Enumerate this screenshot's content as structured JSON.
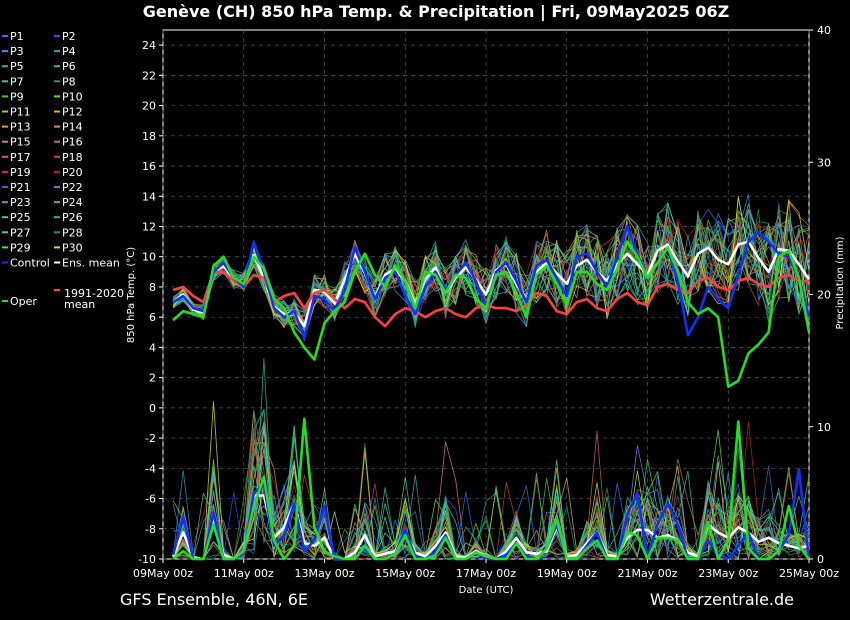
{
  "chart_data": {
    "type": "line",
    "title": "Genève  (CH)  850 hPa Temp. & Precipitation | Fri, 09May2025 06Z",
    "ylabel": "850 hPa Temp. (°C)",
    "y2label": "Precipitation (mm)",
    "xlabel": "Date (UTC)",
    "ylim": [
      -10,
      25
    ],
    "y2lim": [
      0,
      40
    ],
    "yticks": [
      -10,
      -8,
      -6,
      -4,
      -2,
      0,
      2,
      4,
      6,
      8,
      10,
      12,
      14,
      16,
      18,
      20,
      22,
      24
    ],
    "y2ticks": [
      0,
      10,
      20,
      30,
      40
    ],
    "xticks": [
      "09May 00z",
      "11May 00z",
      "13May 00z",
      "15May 00z",
      "17May 00z",
      "19May 00z",
      "21May 00z",
      "23May 00z",
      "25May 00z"
    ],
    "x_hours": [
      6,
      12,
      18,
      24,
      30,
      36,
      42,
      48,
      54,
      60,
      66,
      72,
      78,
      84,
      90,
      96,
      102,
      108,
      114,
      120,
      126,
      132,
      138,
      144,
      150,
      156,
      162,
      168,
      174,
      180,
      186,
      192,
      198,
      204,
      210,
      216,
      222,
      228,
      234,
      240,
      246,
      252,
      258,
      264,
      270,
      276,
      282,
      288,
      294,
      300,
      306,
      312,
      318,
      324,
      330,
      336,
      342,
      348,
      354,
      360,
      366,
      372,
      378,
      384
    ],
    "grid": true,
    "legend_position": "left-outside",
    "footer_left": "GFS Ensemble, 46N, 6E",
    "footer_right": "Wetterzentrale.de",
    "legend": [
      {
        "name": "P1",
        "color": "#2f6fff"
      },
      {
        "name": "P2",
        "color": "#2f4fff"
      },
      {
        "name": "P3",
        "color": "#4f8fff"
      },
      {
        "name": "P4",
        "color": "#2fa0c0"
      },
      {
        "name": "P5",
        "color": "#2fb0b0"
      },
      {
        "name": "P6",
        "color": "#30c080"
      },
      {
        "name": "P7",
        "color": "#30c8a0"
      },
      {
        "name": "P8",
        "color": "#20a060"
      },
      {
        "name": "P9",
        "color": "#40d040"
      },
      {
        "name": "P10",
        "color": "#50e020"
      },
      {
        "name": "P11",
        "color": "#c0c020"
      },
      {
        "name": "P12",
        "color": "#d0b040"
      },
      {
        "name": "P13",
        "color": "#e0a020"
      },
      {
        "name": "P14",
        "color": "#e09030"
      },
      {
        "name": "P15",
        "color": "#e08050"
      },
      {
        "name": "P16",
        "color": "#c07030"
      },
      {
        "name": "P17",
        "color": "#e06040"
      },
      {
        "name": "P18",
        "color": "#d04040"
      },
      {
        "name": "P19",
        "color": "#e03030"
      },
      {
        "name": "P20",
        "color": "#c02020"
      },
      {
        "name": "P21",
        "color": "#3070d0"
      },
      {
        "name": "P22",
        "color": "#3090e0"
      },
      {
        "name": "P23",
        "color": "#40a0d0"
      },
      {
        "name": "P24",
        "color": "#30b0c0"
      },
      {
        "name": "P25",
        "color": "#30d0a0"
      },
      {
        "name": "P26",
        "color": "#20c090"
      },
      {
        "name": "P27",
        "color": "#40d0c0"
      },
      {
        "name": "P28",
        "color": "#20a040"
      },
      {
        "name": "P29",
        "color": "#60e040"
      },
      {
        "name": "P30",
        "color": "#e0e020"
      },
      {
        "name": "Control",
        "color": "#1030ff"
      },
      {
        "name": "Ens. mean",
        "color": "#ffffff"
      },
      {
        "name": "Oper",
        "color": "#20e020"
      },
      {
        "name": "1991-2020\nmean",
        "color": "#ff4040"
      }
    ],
    "series": [
      {
        "name": "Ens. mean",
        "color": "#ffffff",
        "values": [
          7.0,
          7.5,
          6.5,
          6.3,
          9.0,
          9.4,
          8.5,
          8.2,
          10.1,
          8.6,
          6.7,
          6.2,
          6.3,
          5.4,
          7.8,
          7.7,
          6.9,
          8.5,
          10.2,
          8.9,
          7.3,
          8.8,
          9.2,
          8.4,
          6.9,
          8.5,
          9.3,
          7.6,
          8.6,
          9.3,
          8.5,
          7.5,
          9.1,
          9.5,
          8.2,
          7.2,
          9.0,
          9.6,
          8.9,
          8.2,
          9.4,
          9.8,
          9.0,
          8.4,
          9.5,
          10.2,
          9.5,
          8.8,
          10.4,
          10.8,
          9.7,
          8.7,
          10.2,
          10.6,
          9.8,
          9.5,
          10.8,
          11.0,
          9.9,
          9.0,
          10.5,
          10.4,
          9.5,
          8.5
        ]
      },
      {
        "name": "1991-2020 mean",
        "color": "#ff4040",
        "values": [
          7.8,
          8.0,
          7.4,
          7.0,
          9.0,
          9.0,
          8.4,
          8.0,
          8.8,
          8.6,
          7.0,
          7.4,
          7.6,
          6.6,
          7.6,
          7.8,
          7.2,
          6.6,
          7.2,
          7.0,
          6.0,
          5.4,
          6.2,
          6.6,
          6.4,
          6.0,
          6.4,
          6.6,
          6.2,
          6.0,
          6.6,
          6.8,
          6.6,
          6.6,
          6.4,
          6.8,
          7.6,
          7.4,
          6.4,
          6.2,
          7.0,
          7.2,
          6.6,
          6.4,
          7.2,
          7.6,
          7.0,
          6.8,
          8.0,
          8.2,
          7.8,
          7.6,
          8.4,
          8.6,
          8.0,
          7.8,
          8.4,
          8.6,
          8.2,
          8.0,
          8.6,
          8.8,
          8.4,
          8.4
        ]
      },
      {
        "name": "Control",
        "color": "#1030ff",
        "values": [
          7.0,
          7.4,
          6.6,
          6.4,
          9.0,
          9.6,
          8.6,
          8.0,
          11.0,
          9.0,
          6.6,
          6.0,
          6.4,
          4.6,
          7.4,
          7.2,
          6.4,
          7.8,
          10.6,
          9.0,
          7.2,
          8.6,
          9.0,
          7.4,
          6.2,
          8.0,
          9.0,
          7.8,
          8.8,
          9.6,
          8.4,
          6.6,
          9.0,
          9.6,
          8.4,
          7.0,
          9.4,
          9.8,
          8.6,
          7.4,
          10.0,
          10.2,
          9.0,
          8.0,
          10.0,
          12.0,
          10.2,
          8.6,
          9.6,
          10.6,
          8.4,
          4.8,
          6.0,
          8.0,
          7.2,
          6.6,
          8.8,
          11.0,
          11.6,
          11.0,
          10.2,
          10.0,
          8.6,
          6.0
        ]
      },
      {
        "name": "Oper",
        "color": "#20e020",
        "values": [
          5.8,
          6.4,
          6.2,
          6.0,
          9.4,
          10.0,
          8.6,
          8.2,
          10.0,
          9.2,
          7.2,
          6.6,
          5.0,
          4.0,
          3.2,
          5.6,
          6.4,
          7.0,
          9.0,
          10.2,
          8.8,
          8.0,
          9.4,
          8.4,
          6.6,
          9.0,
          8.8,
          7.6,
          8.8,
          8.6,
          7.2,
          6.6,
          8.8,
          9.0,
          7.6,
          6.0,
          8.8,
          9.4,
          8.2,
          6.8,
          9.0,
          9.0,
          8.2,
          7.8,
          9.2,
          11.0,
          10.0,
          8.6,
          9.6,
          10.6,
          9.0,
          7.0,
          6.2,
          6.6,
          6.0,
          1.4,
          1.8,
          3.6,
          4.2,
          5.0,
          10.0,
          10.4,
          8.6,
          5.0
        ]
      }
    ],
    "precip_series": [
      {
        "name": "Ens. mean",
        "color": "#ffffff",
        "values": [
          0.2,
          2.0,
          0.1,
          0.0,
          3.0,
          0.3,
          0.0,
          0.6,
          4.8,
          4.8,
          1.6,
          2.4,
          4.2,
          1.2,
          1.0,
          1.6,
          0.0,
          0.0,
          0.5,
          1.8,
          0.2,
          0.4,
          0.6,
          2.0,
          0.5,
          0.2,
          1.0,
          2.0,
          0.2,
          0.1,
          0.6,
          0.2,
          0.0,
          0.6,
          1.6,
          0.5,
          0.4,
          0.6,
          2.4,
          0.2,
          0.3,
          1.2,
          2.0,
          0.3,
          0.2,
          1.6,
          2.2,
          2.2,
          1.6,
          1.8,
          1.4,
          0.5,
          0.2,
          2.6,
          2.0,
          1.6,
          2.4,
          2.0,
          1.3,
          1.6,
          1.2,
          1.0,
          0.8,
          1.0
        ]
      },
      {
        "name": "Control",
        "color": "#1030ff",
        "values": [
          0.3,
          3.2,
          0.0,
          0.0,
          3.5,
          0.0,
          0.0,
          0.4,
          5.0,
          5.6,
          1.0,
          1.8,
          4.2,
          0.6,
          1.4,
          4.0,
          0.0,
          0.0,
          0.0,
          0.8,
          0.0,
          0.0,
          0.4,
          2.2,
          0.2,
          0.0,
          0.6,
          1.8,
          0.0,
          0.0,
          0.5,
          0.0,
          0.0,
          0.3,
          1.2,
          0.2,
          0.0,
          0.8,
          2.6,
          0.0,
          0.0,
          1.0,
          2.0,
          0.0,
          0.0,
          3.4,
          5.0,
          0.0,
          2.6,
          4.2,
          2.6,
          0.0,
          0.0,
          1.4,
          0.4,
          0.0,
          1.0,
          2.0,
          0.0,
          0.0,
          0.6,
          1.8,
          6.8,
          0.0
        ]
      },
      {
        "name": "Oper",
        "color": "#20e020",
        "values": [
          0.0,
          0.6,
          0.0,
          0.0,
          2.6,
          0.0,
          0.0,
          0.6,
          4.0,
          6.2,
          1.4,
          0.0,
          1.0,
          10.6,
          2.4,
          0.6,
          0.2,
          0.0,
          0.0,
          1.0,
          0.0,
          0.0,
          0.4,
          1.8,
          0.0,
          0.0,
          0.3,
          1.6,
          0.0,
          0.0,
          0.5,
          0.2,
          0.0,
          0.0,
          1.2,
          0.0,
          0.0,
          0.8,
          3.0,
          0.0,
          0.0,
          0.8,
          1.4,
          0.0,
          0.0,
          2.0,
          1.8,
          0.0,
          1.6,
          1.6,
          1.4,
          0.0,
          0.0,
          2.8,
          0.0,
          1.4,
          10.4,
          0.8,
          0.0,
          0.0,
          0.6,
          4.0,
          1.0,
          0.0
        ]
      }
    ]
  }
}
